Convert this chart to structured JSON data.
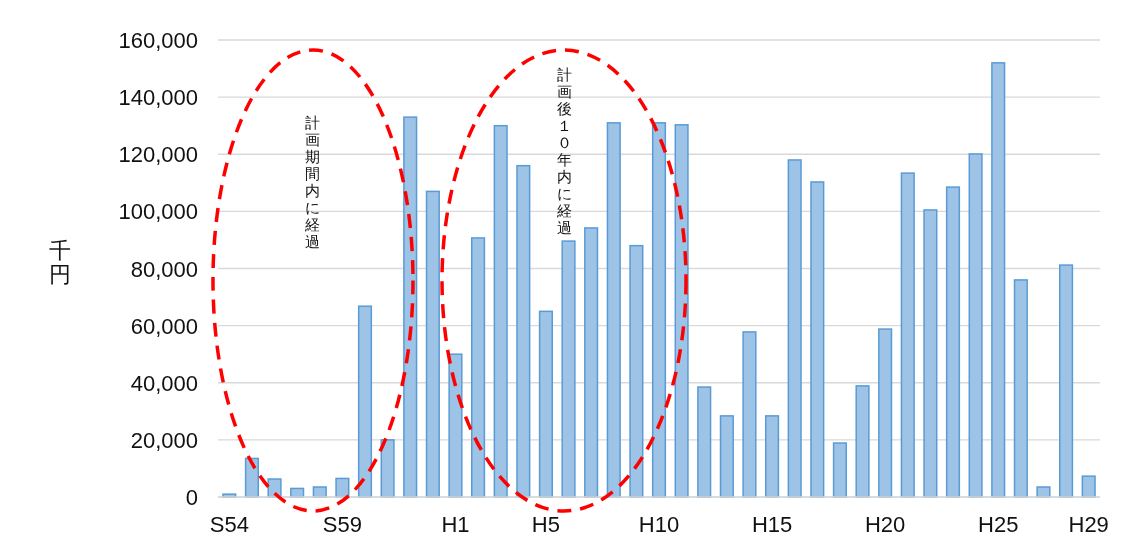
{
  "chart_data": {
    "type": "bar",
    "ylabel": "千円",
    "categories": [
      "S54",
      null,
      null,
      null,
      null,
      "S59",
      null,
      null,
      null,
      null,
      "H1",
      null,
      null,
      null,
      "H5",
      null,
      null,
      null,
      null,
      "H10",
      null,
      null,
      null,
      null,
      "H15",
      null,
      null,
      null,
      null,
      "H20",
      null,
      null,
      null,
      null,
      "H25",
      null,
      null,
      null,
      "H29"
    ],
    "values": [
      1000,
      13500,
      6300,
      3000,
      3500,
      6500,
      66800,
      20000,
      133000,
      107000,
      50000,
      90700,
      130000,
      116000,
      65000,
      89600,
      94200,
      131000,
      88000,
      131000,
      130300,
      38500,
      28400,
      57800,
      28400,
      118000,
      110300,
      18900,
      38900,
      58800,
      113400,
      100500,
      108500,
      120100,
      152000,
      76000,
      3500,
      81200,
      7300
    ],
    "color": "#9dc3e6",
    "ylim": [
      0,
      160000
    ],
    "yticks": [
      {
        "value": 0,
        "label": "0"
      },
      {
        "value": 20000,
        "label": "20,000"
      },
      {
        "value": 40000,
        "label": "40,000"
      },
      {
        "value": 60000,
        "label": "60,000"
      },
      {
        "value": 80000,
        "label": "80,000"
      },
      {
        "value": 100000,
        "label": "100,000"
      },
      {
        "value": 120000,
        "label": "120,000"
      },
      {
        "value": 140000,
        "label": "140,000"
      },
      {
        "value": 160000,
        "label": "160,000"
      }
    ],
    "grid": "y",
    "annotations": [
      "計画期間内に経過",
      "計画後１０年内に経過"
    ]
  }
}
